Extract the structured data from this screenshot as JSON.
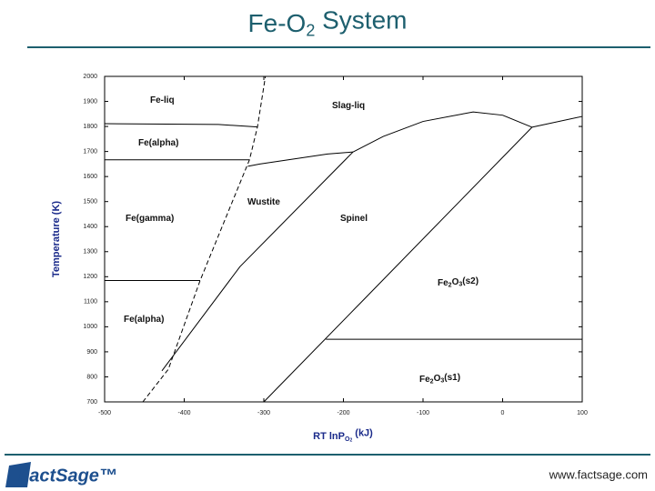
{
  "chart_data": {
    "type": "line",
    "title": "Fe-O2 System",
    "xlabel": "RT lnPO2 (kJ)",
    "ylabel": "Temperature (K)",
    "xlim": [
      -500,
      100
    ],
    "xticks": [
      -500,
      -400,
      -300,
      -200,
      -100,
      0,
      100
    ],
    "ylim": [
      700,
      2000
    ],
    "yticks": [
      700,
      800,
      900,
      1000,
      1100,
      1200,
      1300,
      1400,
      1500,
      1600,
      1700,
      1800,
      1900,
      2000
    ],
    "color": "#000000",
    "series": [
      {
        "x": [
          -500,
          -357,
          -308
        ],
        "values": [
          1811,
          1808,
          1798
        ]
      },
      {
        "x": [
          -500,
          -318
        ],
        "values": [
          1667,
          1667
        ]
      },
      {
        "x": [
          -500,
          -380
        ],
        "values": [
          1185,
          1185
        ]
      },
      {
        "x": [
          -452,
          -420,
          -380,
          -318,
          -308,
          -298
        ],
        "values": [
          700,
          830,
          1185,
          1667,
          1798,
          2000
        ],
        "dashed": true
      },
      {
        "x": [
          -428,
          -330,
          -188
        ],
        "values": [
          824,
          1240,
          1698
        ]
      },
      {
        "x": [
          -320,
          -305,
          -220,
          -188
        ],
        "values": [
          1641,
          1650,
          1690,
          1698
        ]
      },
      {
        "x": [
          -188,
          -150,
          -100,
          -37,
          0,
          37
        ],
        "values": [
          1698,
          1760,
          1820,
          1858,
          1845,
          1797
        ]
      },
      {
        "x": [
          37,
          100
        ],
        "values": [
          1797,
          1840
        ]
      },
      {
        "x": [
          -300,
          -174,
          37
        ],
        "values": [
          700,
          1110,
          1797
        ]
      },
      {
        "x": [
          -222,
          100
        ],
        "values": [
          950,
          950
        ]
      }
    ],
    "regions": [
      "Fe-liq",
      "Slag-liq",
      "Fe(alpha)",
      "Fe(gamma)",
      "Wustite",
      "Spinel",
      "Fe(alpha)",
      "Fe2O3(s2)",
      "Fe2O3(s1)"
    ]
  },
  "footer": {
    "logo": "FactSage™",
    "url": "www.factsage.com"
  }
}
